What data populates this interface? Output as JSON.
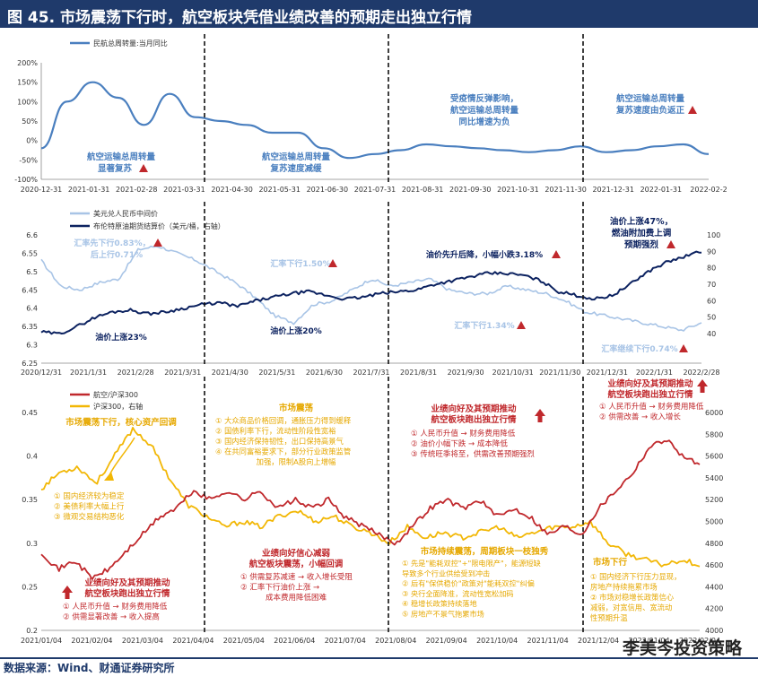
{
  "title": "图 45.  市场震荡下行时，航空板块凭借业绩改善的预期走出独立行情",
  "source": "数据来源：Wind、财通证券研究所",
  "watermark": "李美岑投资策略",
  "colors": {
    "title_bg": "#1f3a6b",
    "blue": "#4a7fbf",
    "navy": "#0c2260",
    "light_blue": "#a8c4e6",
    "red": "#c0282c",
    "gold": "#f2b705"
  },
  "chart_data": [
    {
      "type": "line",
      "x_labels": [
        "2020-12-31",
        "2021-01-31",
        "2021-02-28",
        "2021-03-31",
        "2021-04-30",
        "2021-05-31",
        "2021-06-30",
        "2021-07-31",
        "2021-08-31",
        "2021-09-30",
        "2021-10-31",
        "2021-11-30",
        "2021-12-31",
        "2022-01-31",
        "2022-02-2"
      ],
      "y_ticks": [
        "200%",
        "150%",
        "100%",
        "50%",
        "0%",
        "-50%",
        "-100%"
      ],
      "ylim": [
        -100,
        200
      ],
      "series": [
        {
          "name": "民航总周转量:当月同比",
          "values": [
            -20,
            100,
            150,
            110,
            40,
            120,
            60,
            50,
            40,
            20,
            20,
            -20,
            -45,
            -35,
            -25,
            -10,
            -15,
            -20,
            -25,
            -30,
            -25,
            -15,
            -30,
            -25,
            -15,
            -10,
            -35
          ]
        }
      ],
      "annotations": [
        {
          "text": "航空运输总周转量",
          "text2": "显著复苏"
        },
        {
          "text": "航空运输总周转量",
          "text2": "复苏速度减缓"
        },
        {
          "text": "受疫情反弹影响，",
          "text2": "航空运输总周转量",
          "text3": "同比增速为负"
        },
        {
          "text": "航空运输总周转量",
          "text2": "复苏速度由负返正"
        }
      ]
    },
    {
      "type": "line",
      "x_labels": [
        "2020/12/31",
        "2021/1/31",
        "2021/2/28",
        "2021/3/31",
        "2021/4/30",
        "2021/5/31",
        "2021/6/30",
        "2021/7/31",
        "2021/8/31",
        "2021/9/30",
        "2021/10/31",
        "2021/11/30",
        "2021/12/31",
        "2022/1/31",
        "2022/2/28"
      ],
      "y_ticks_left": [
        "6.6",
        "6.55",
        "6.5",
        "6.45",
        "6.4",
        "6.35",
        "6.3",
        "6.25"
      ],
      "y_ticks_right": [
        "100",
        "90",
        "80",
        "70",
        "60",
        "50",
        "40"
      ],
      "ylim_left": [
        6.25,
        6.6
      ],
      "ylim_right": [
        35,
        105
      ],
      "series": [
        {
          "name": "美元兑人民币中间价",
          "axis": "left",
          "values": [
            6.53,
            6.46,
            6.45,
            6.47,
            6.48,
            6.56,
            6.57,
            6.55,
            6.53,
            6.5,
            6.47,
            6.43,
            6.38,
            6.36,
            6.41,
            6.42,
            6.45,
            6.48,
            6.46,
            6.47,
            6.48,
            6.45,
            6.44,
            6.44,
            6.46,
            6.45,
            6.44,
            6.42,
            6.39,
            6.38,
            6.37,
            6.36,
            6.35,
            6.34,
            6.36
          ]
        },
        {
          "name": "布伦特原油期货结算价（美元/桶，右轴）",
          "axis": "right",
          "values": [
            52,
            51,
            55,
            60,
            63,
            64,
            62,
            63,
            65,
            67,
            68,
            66,
            69,
            71,
            73,
            74,
            72,
            70,
            71,
            73,
            74,
            75,
            78,
            80,
            82,
            84,
            84,
            83,
            80,
            74,
            72,
            70,
            72,
            78,
            85,
            90,
            93,
            96
          ]
        }
      ],
      "annotations": [
        {
          "text": "汇率先下行0.83%，",
          "text2": "后上行0.71%"
        },
        {
          "text": "油价上涨23%"
        },
        {
          "text": "汇率下行1.50%"
        },
        {
          "text": "油价上涨20%"
        },
        {
          "text": "油价先升后降，小幅小跌3.18%"
        },
        {
          "text": "汇率下行1.34%"
        },
        {
          "text": "油价上涨47%，",
          "text2": "燃油附加费上调",
          "text3": "预期强烈"
        },
        {
          "text": "汇率继续下行0.74%"
        }
      ]
    },
    {
      "type": "line",
      "x_labels": [
        "2021/01/04",
        "2021/02/04",
        "2021/03/04",
        "2021/04/04",
        "2021/05/04",
        "2021/06/04",
        "2021/07/04",
        "2021/08/04",
        "2021/09/04",
        "2021/10/04",
        "2021/11/04",
        "2021/12/04",
        "2022/01/04",
        "2022/02/04"
      ],
      "y_ticks_left": [
        "0.45",
        "0.4",
        "0.35",
        "0.3",
        "0.25",
        "0.2"
      ],
      "y_ticks_right": [
        "6000",
        "5800",
        "5600",
        "5400",
        "5200",
        "5000",
        "4800",
        "4600",
        "4400",
        "4200",
        "4000"
      ],
      "ylim_left": [
        0.2,
        0.45
      ],
      "ylim_right": [
        4000,
        6000
      ],
      "series": [
        {
          "name": "航空/沪深300",
          "axis": "left",
          "values": [
            0.29,
            0.27,
            0.28,
            0.26,
            0.27,
            0.29,
            0.31,
            0.33,
            0.34,
            0.36,
            0.35,
            0.36,
            0.35,
            0.36,
            0.34,
            0.35,
            0.34,
            0.35,
            0.33,
            0.32,
            0.31,
            0.3,
            0.32,
            0.34,
            0.35,
            0.34,
            0.35,
            0.33,
            0.34,
            0.33,
            0.31,
            0.32,
            0.31,
            0.34,
            0.36,
            0.38,
            0.41,
            0.42,
            0.4,
            0.39
          ]
        },
        {
          "name": "沪深300，右轴",
          "axis": "right",
          "values": [
            5300,
            5450,
            5500,
            5350,
            5600,
            5850,
            5700,
            5400,
            5150,
            5050,
            4950,
            5000,
            4950,
            5050,
            5100,
            5000,
            5050,
            4950,
            4900,
            4800,
            4950,
            4850,
            4900,
            4850,
            4900,
            4950,
            4850,
            4900,
            4950,
            4950,
            5000,
            4800,
            4700,
            4650,
            4600,
            4650,
            4600
          ]
        }
      ],
      "annotations": [
        {
          "text": "市场震荡下行，核心资产回调"
        },
        {
          "text": "① 国内经济较为稳定",
          "text2": "② 美债利率大幅上行",
          "text3": "③ 微观交易结构恶化"
        },
        {
          "text": "业绩向好及其预期推动",
          "text2": "航空板块跑出独立行情"
        },
        {
          "text": "① 人民币升值 → 财务费用降低",
          "text2": "② 供需显著改善 → 收入提高"
        },
        {
          "text": "市场震荡"
        },
        {
          "text": "① 大众商品价格回调，通胀压力得到缓释",
          "text2": "② 国债利率下行，流动性阶段性宽裕",
          "text3": "③ 国内经济保持韧性，出口保持高景气",
          "text4": "④ 在共同富裕要求下，部分行业政策监管",
          "text5": "加强，限制A股向上增幅"
        },
        {
          "text": "业绩向好信心减弱",
          "text2": "航空板块震荡，小幅回调"
        },
        {
          "text": "① 供需复苏减速 → 收入增长受阻",
          "text2": "② 汇率下行油价上涨 →",
          "text3": "成本费用降低困难"
        },
        {
          "text": "业绩向好及其预期推动",
          "text2": "航空板块跑出独立行情"
        },
        {
          "text": "① 人民币升值 → 财务费用降低",
          "text2": "② 油价小幅下跌 → 成本降低",
          "text3": "③ 传统旺季将至，供需改善预期强烈"
        },
        {
          "text": "市场持续震荡，周期板块一枝独秀"
        },
        {
          "text": "① 先是\"能耗双控\"+\"限电限产\"，能源短缺",
          "text2": "导致多个行业供给受到冲击",
          "text3": "② 后有\"保供稳价\"政策对\"能耗双控\"纠偏",
          "text4": "③ 央行全面降准，流动性宽松加码",
          "text5": "④ 稳增长政策持续落地",
          "text6": "⑤ 房地产不景气拖累市场"
        },
        {
          "text": "业绩向好及其预期推动",
          "text2": "航空板块跑出独立行情"
        },
        {
          "text": "① 人民币升值 → 财务费用降低",
          "text2": "② 供需改善 → 收入增长"
        },
        {
          "text": "市场下行"
        },
        {
          "text": "① 国内经济下行压力显现，",
          "text2": "房地产持续拖累市场",
          "text3": "② 市场对稳增长政策信心",
          "text4": "减弱，对宽信用、宽流动",
          "text5": "性预期升温"
        }
      ]
    }
  ]
}
